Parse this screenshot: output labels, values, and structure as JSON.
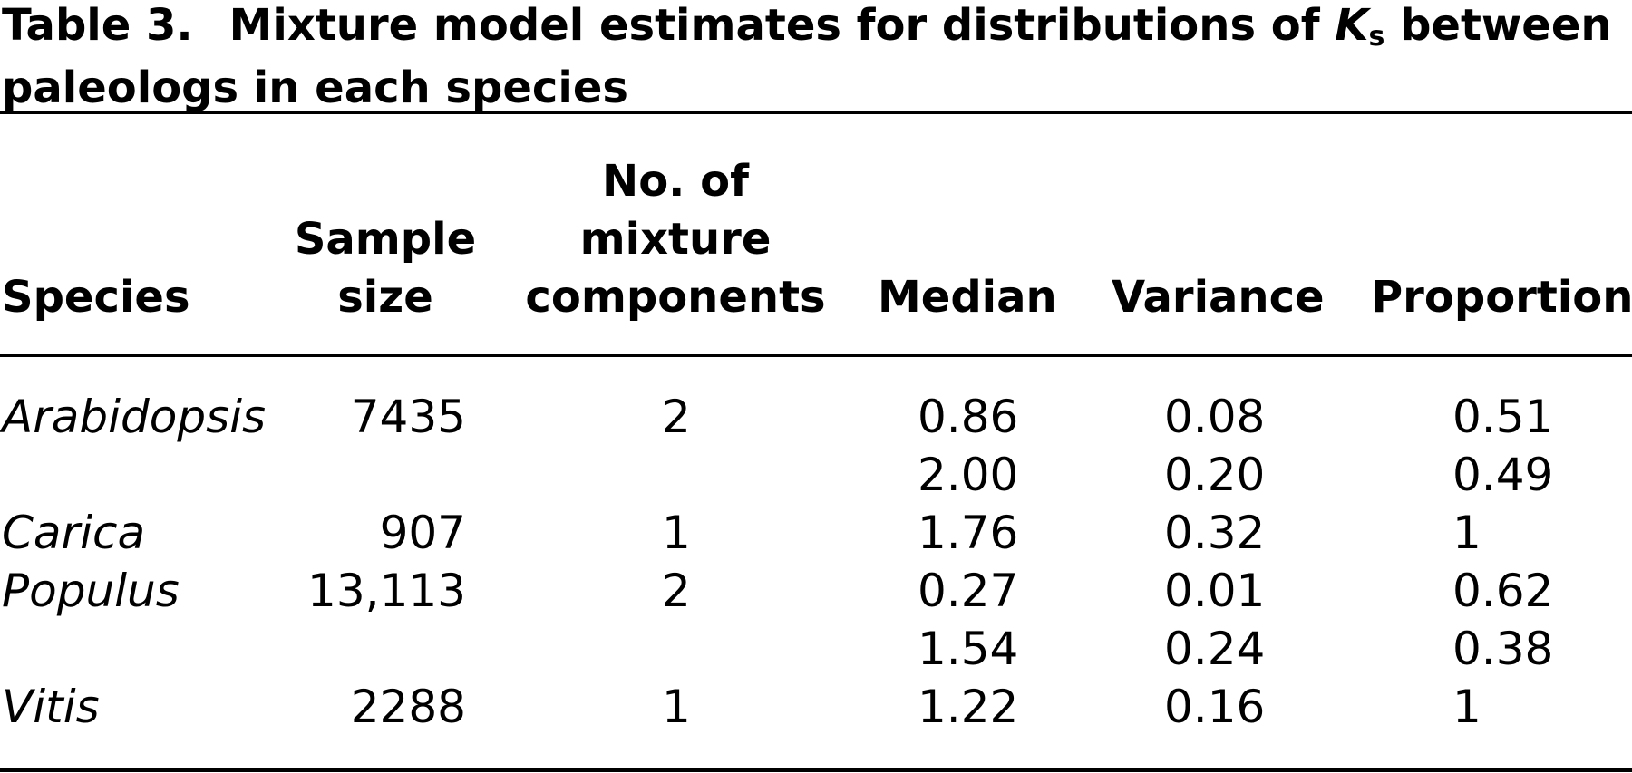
{
  "caption": {
    "label": "Table 3.",
    "text_before": "Mixture model estimates for distributions of ",
    "ks_symbol": "K",
    "ks_subscript": "s",
    "text_after": " between paleologs in each species"
  },
  "headers": {
    "species": "Species",
    "sample_size_line1": "Sample",
    "sample_size_line2": "size",
    "components_line1": "No. of",
    "components_line2": "mixture",
    "components_line3": "components",
    "median": "Median",
    "variance": "Variance",
    "proportion": "Proportion"
  },
  "rows": [
    {
      "species": "Arabidopsis",
      "sample_size": "7435",
      "components": "2",
      "median": "0.86",
      "variance": "0.08",
      "proportion": "0.51"
    },
    {
      "species": "",
      "sample_size": "",
      "components": "",
      "median": "2.00",
      "variance": "0.20",
      "proportion": "0.49"
    },
    {
      "species": "Carica",
      "sample_size": "907",
      "components": "1",
      "median": "1.76",
      "variance": "0.32",
      "proportion": "1"
    },
    {
      "species": "Populus",
      "sample_size": "13,113",
      "components": "2",
      "median": "0.27",
      "variance": "0.01",
      "proportion": "0.62"
    },
    {
      "species": "",
      "sample_size": "",
      "components": "",
      "median": "1.54",
      "variance": "0.24",
      "proportion": "0.38"
    },
    {
      "species": "Vitis",
      "sample_size": "2288",
      "components": "1",
      "median": "1.22",
      "variance": "0.16",
      "proportion": "1"
    }
  ]
}
